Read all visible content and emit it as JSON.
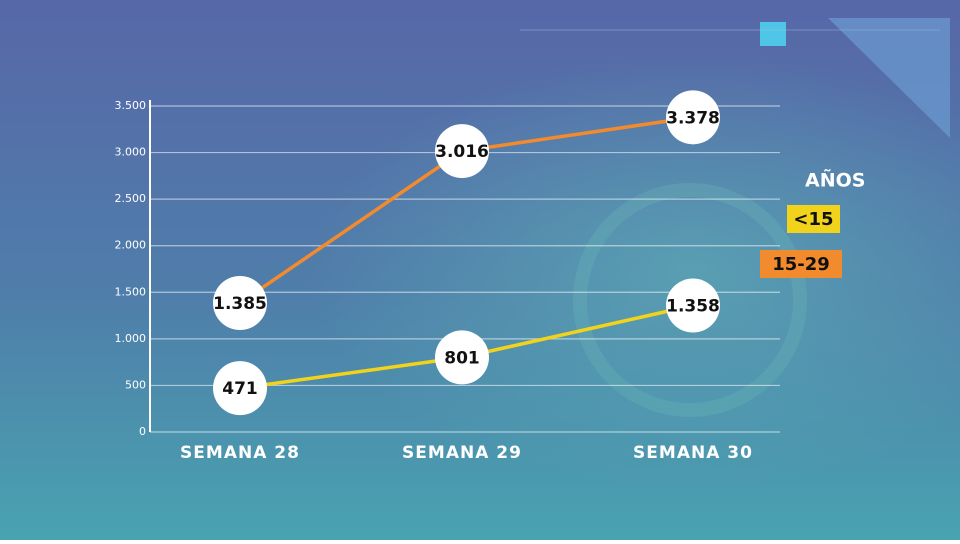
{
  "chart_data": {
    "type": "line",
    "categories": [
      "SEMANA 28",
      "SEMANA 29",
      "SEMANA 30"
    ],
    "series": [
      {
        "name": "<15",
        "color": "#f2d31b",
        "values": [
          471,
          801,
          1358
        ],
        "value_labels": [
          "471",
          "801",
          "1.358"
        ]
      },
      {
        "name": "15-29",
        "color": "#f28a2e",
        "values": [
          1385,
          3016,
          3378
        ],
        "value_labels": [
          "1.385",
          "3.016",
          "3.378"
        ]
      }
    ],
    "legend_title": "AÑOS",
    "ylim": [
      0,
      3500
    ],
    "yticks": [
      0,
      500,
      {
        "value": 1000,
        "label": "1.000"
      },
      {
        "value": 1500,
        "label": "1.500"
      },
      {
        "value": 2000,
        "label": "2.000"
      },
      {
        "value": 2500,
        "label": "2.500"
      },
      {
        "value": 3000,
        "label": "3.000"
      },
      {
        "value": 3500,
        "label": "3.500"
      }
    ],
    "grid": true
  }
}
